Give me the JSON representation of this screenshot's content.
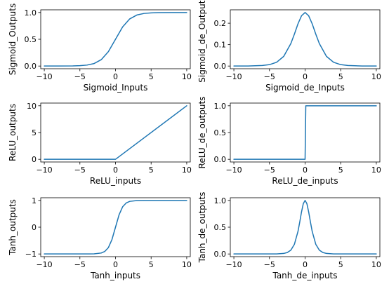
{
  "chart_data": [
    {
      "type": "line",
      "xlabel": "Sigmoid_Inputs",
      "ylabel": "Sigmoid_Outputs",
      "xlim": [
        -10.5,
        10.5
      ],
      "ylim": [
        -0.05,
        1.05
      ],
      "xticks": [
        -10,
        -5,
        0,
        5,
        10
      ],
      "xtick_labels": [
        "−10",
        "−5",
        "0",
        "5",
        "10"
      ],
      "yticks": [
        0,
        0.5,
        1
      ],
      "ytick_labels": [
        "0.0",
        "0.5",
        "1.0"
      ],
      "series": [
        {
          "x": [
            -10,
            -8,
            -6,
            -5,
            -4,
            -3,
            -2,
            -1,
            0,
            1,
            2,
            3,
            4,
            5,
            6,
            8,
            10
          ],
          "y": [
            5e-05,
            0.0003,
            0.0025,
            0.0067,
            0.018,
            0.047,
            0.119,
            0.269,
            0.5,
            0.731,
            0.881,
            0.953,
            0.982,
            0.993,
            0.9975,
            0.9997,
            0.99995
          ]
        }
      ]
    },
    {
      "type": "line",
      "xlabel": "Sigmoid_de_Inputs",
      "ylabel": "Sigmoid_de_Outputs",
      "xlim": [
        -10.5,
        10.5
      ],
      "ylim": [
        -0.0125,
        0.2625
      ],
      "xticks": [
        -10,
        -5,
        0,
        5,
        10
      ],
      "xtick_labels": [
        "−10",
        "−5",
        "0",
        "5",
        "10"
      ],
      "yticks": [
        0,
        0.1,
        0.2
      ],
      "ytick_labels": [
        "0.0",
        "0.1",
        "0.2"
      ],
      "series": [
        {
          "x": [
            -10,
            -8,
            -6,
            -5,
            -4,
            -3,
            -2,
            -1.5,
            -1,
            -0.5,
            0,
            0.5,
            1,
            1.5,
            2,
            3,
            4,
            5,
            6,
            8,
            10
          ],
          "y": [
            5e-05,
            0.0003,
            0.0025,
            0.0066,
            0.0177,
            0.0452,
            0.105,
            0.149,
            0.197,
            0.235,
            0.25,
            0.235,
            0.197,
            0.149,
            0.105,
            0.0452,
            0.0177,
            0.0066,
            0.0025,
            0.0003,
            5e-05
          ]
        }
      ]
    },
    {
      "type": "line",
      "xlabel": "ReLU_inputs",
      "ylabel": "ReLU_outputs",
      "xlim": [
        -10.5,
        10.5
      ],
      "ylim": [
        -0.5,
        10.5
      ],
      "xticks": [
        -10,
        -5,
        0,
        5,
        10
      ],
      "xtick_labels": [
        "−10",
        "−5",
        "0",
        "5",
        "10"
      ],
      "yticks": [
        0,
        5,
        10
      ],
      "ytick_labels": [
        "0",
        "5",
        "10"
      ],
      "series": [
        {
          "x": [
            -10,
            0,
            10
          ],
          "y": [
            0,
            0,
            10
          ]
        }
      ]
    },
    {
      "type": "line",
      "xlabel": "ReLU_de_inputs",
      "ylabel": "ReLU_de_outputs",
      "xlim": [
        -10.5,
        10.5
      ],
      "ylim": [
        -0.05,
        1.05
      ],
      "xticks": [
        -10,
        -5,
        0,
        5,
        10
      ],
      "xtick_labels": [
        "−10",
        "−5",
        "0",
        "5",
        "10"
      ],
      "yticks": [
        0,
        0.5,
        1
      ],
      "ytick_labels": [
        "0.0",
        "0.5",
        "1.0"
      ],
      "series": [
        {
          "x": [
            -10,
            0,
            0.1,
            10
          ],
          "y": [
            0,
            0,
            1,
            1
          ]
        }
      ]
    },
    {
      "type": "line",
      "xlabel": "Tanh_inputs",
      "ylabel": "Tanh_outputs",
      "xlim": [
        -10.5,
        10.5
      ],
      "ylim": [
        -1.1,
        1.1
      ],
      "xticks": [
        -10,
        -5,
        0,
        5,
        10
      ],
      "xtick_labels": [
        "−10",
        "−5",
        "0",
        "5",
        "10"
      ],
      "yticks": [
        -1,
        0,
        1
      ],
      "ytick_labels": [
        "−1",
        "0",
        "1"
      ],
      "series": [
        {
          "x": [
            -10,
            -6,
            -4,
            -3,
            -2,
            -1.5,
            -1,
            -0.5,
            0,
            0.5,
            1,
            1.5,
            2,
            3,
            4,
            6,
            10
          ],
          "y": [
            -1,
            -1,
            -0.9993,
            -0.995,
            -0.964,
            -0.905,
            -0.762,
            -0.462,
            0,
            0.462,
            0.762,
            0.905,
            0.964,
            0.995,
            0.9993,
            1,
            1
          ]
        }
      ]
    },
    {
      "type": "line",
      "xlabel": "Tanh_de_inputs",
      "ylabel": "Tanh_de_outputs",
      "xlim": [
        -10.5,
        10.5
      ],
      "ylim": [
        -0.05,
        1.05
      ],
      "xticks": [
        -10,
        -5,
        0,
        5,
        10
      ],
      "xtick_labels": [
        "−10",
        "−5",
        "0",
        "5",
        "10"
      ],
      "yticks": [
        0,
        0.5,
        1
      ],
      "ytick_labels": [
        "0.0",
        "0.5",
        "1.0"
      ],
      "series": [
        {
          "x": [
            -10,
            -5,
            -4,
            -3,
            -2.5,
            -2,
            -1.5,
            -1,
            -0.75,
            -0.5,
            -0.25,
            0,
            0.25,
            0.5,
            0.75,
            1,
            1.5,
            2,
            2.5,
            3,
            4,
            5,
            10
          ],
          "y": [
            0,
            0.0002,
            0.0013,
            0.0099,
            0.0266,
            0.0707,
            0.181,
            0.42,
            0.596,
            0.786,
            0.94,
            1,
            0.94,
            0.786,
            0.596,
            0.42,
            0.181,
            0.0707,
            0.0266,
            0.0099,
            0.0013,
            0.0002,
            0
          ]
        }
      ]
    }
  ]
}
